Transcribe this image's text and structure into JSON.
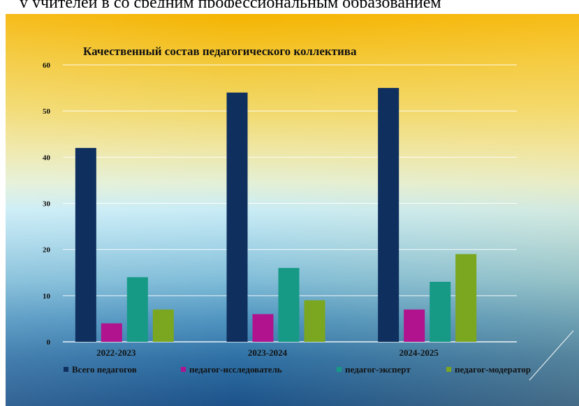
{
  "header_fragment": "у учителей  в  со  средним  профессиональным  образованием",
  "chart_data": {
    "type": "bar",
    "title": "Качественный состав педагогического коллектива",
    "categories": [
      "2022-2023",
      "2023-2024",
      "2024-2025"
    ],
    "series": [
      {
        "name": "Всего педагогов",
        "values": [
          42,
          54,
          55
        ],
        "color": "#0f2f5e"
      },
      {
        "name": "педагог-исследователь",
        "values": [
          4,
          6,
          7
        ],
        "color": "#b0138d"
      },
      {
        "name": "педагог-эксперт",
        "values": [
          14,
          16,
          13
        ],
        "color": "#169a86"
      },
      {
        "name": "педагог-модератор",
        "values": [
          7,
          9,
          19
        ],
        "color": "#7ba61f"
      }
    ],
    "yticks": [
      0,
      10,
      20,
      30,
      40,
      50,
      60
    ],
    "ylim": [
      0,
      60
    ],
    "xlabel": "",
    "ylabel": "",
    "grid": true,
    "legend_position": "bottom"
  }
}
